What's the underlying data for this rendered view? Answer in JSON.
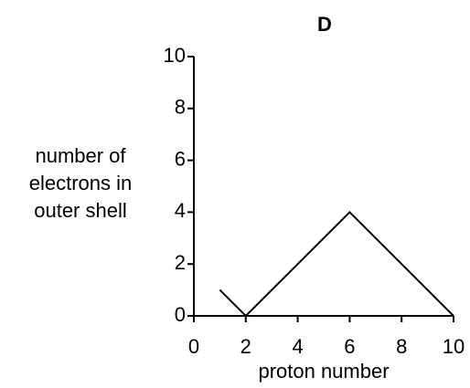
{
  "chart_data": {
    "type": "line",
    "title": "D",
    "xlabel": "proton number",
    "ylabel": [
      "number of",
      "electrons in",
      "outer shell"
    ],
    "x": [
      1,
      2,
      6,
      10
    ],
    "series": [
      {
        "color": "#000000",
        "values": [
          1,
          0,
          4,
          0
        ]
      }
    ],
    "xlim": [
      0,
      10
    ],
    "xticks": [
      0,
      2,
      4,
      6,
      8,
      10
    ],
    "ylim": [
      0,
      10
    ],
    "yticks": [
      0,
      2,
      4,
      6,
      8,
      10
    ],
    "grid": false
  }
}
